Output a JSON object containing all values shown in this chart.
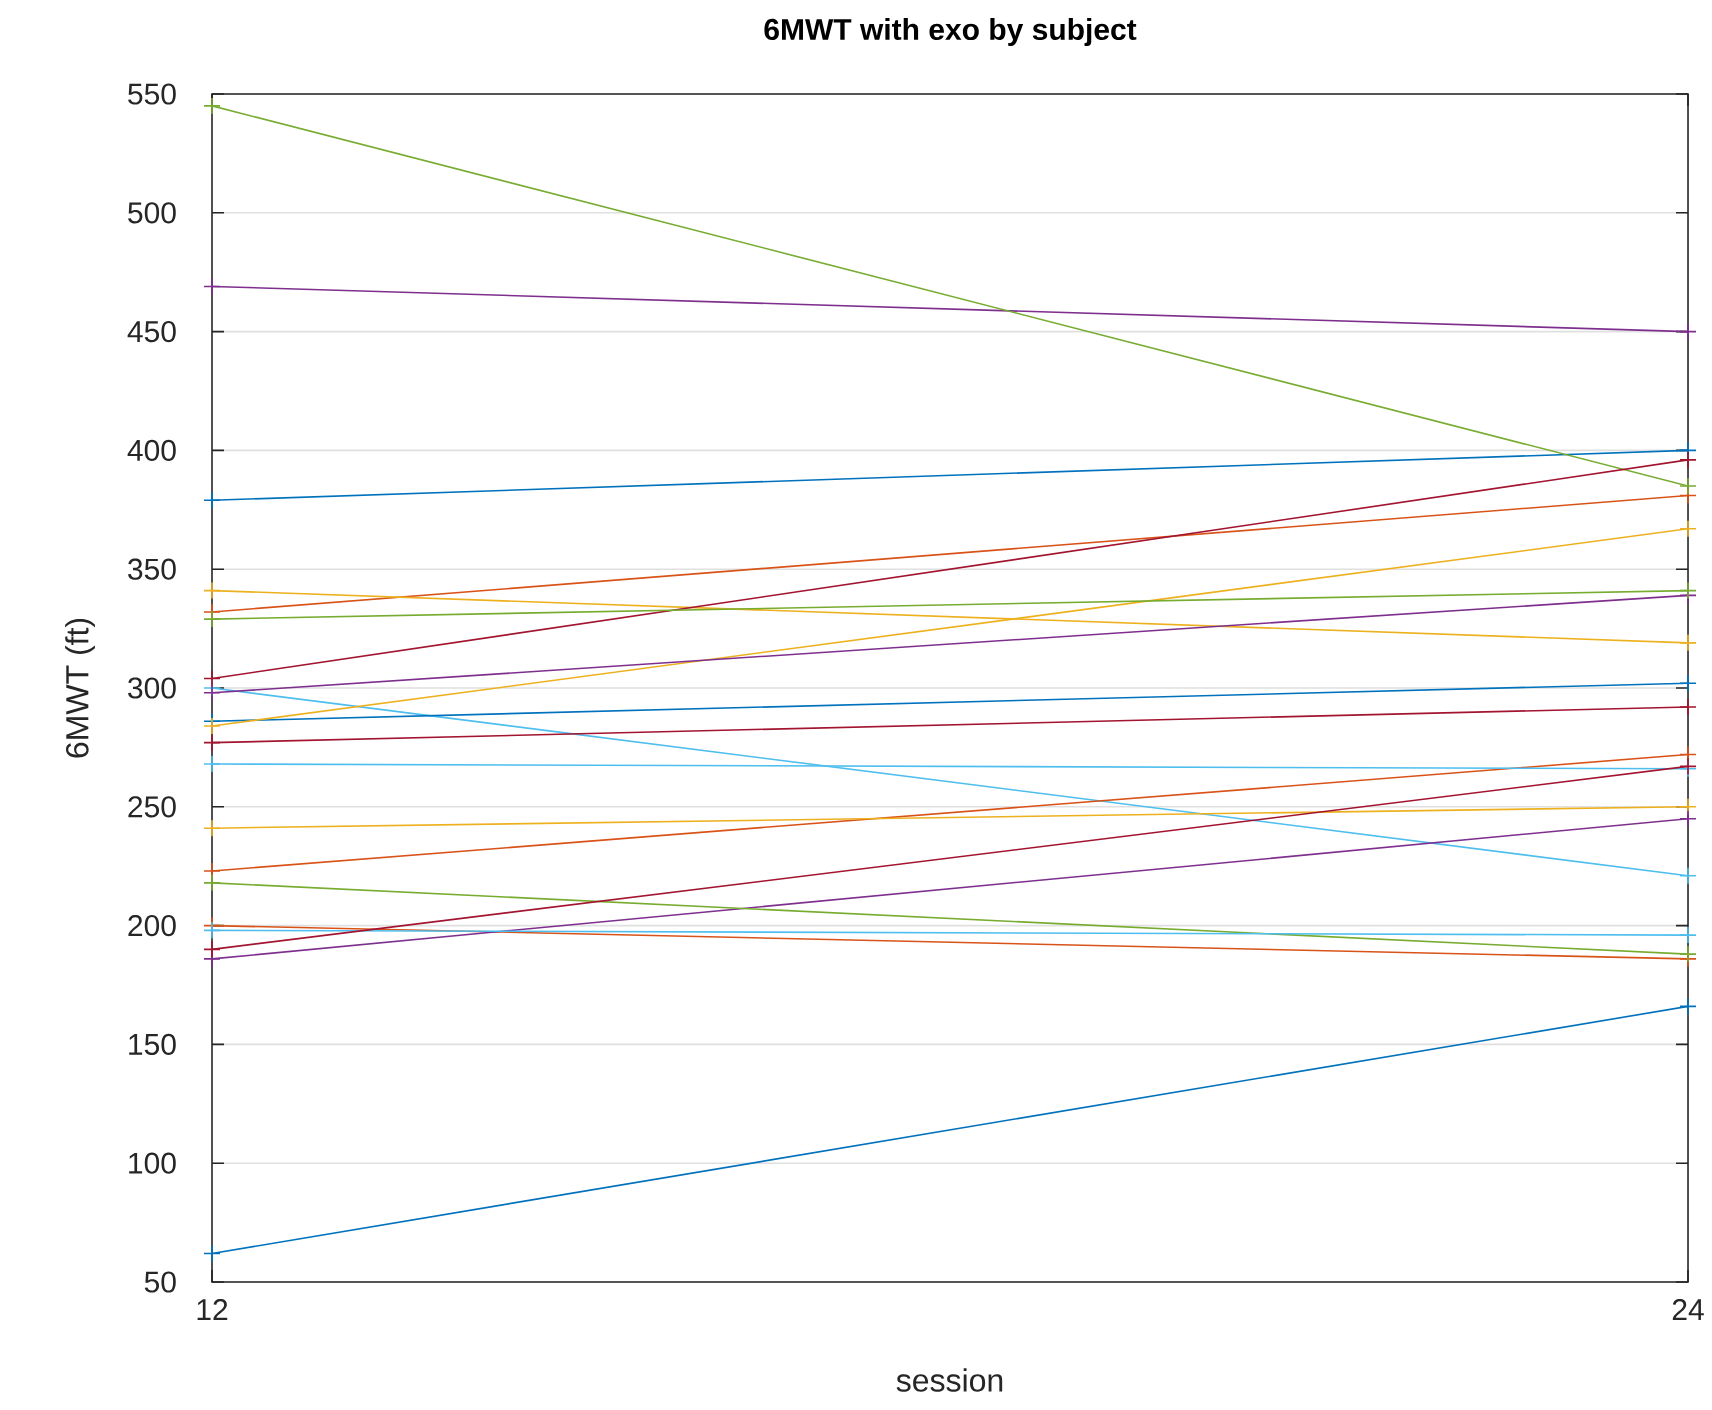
{
  "chart_data": {
    "type": "line",
    "title": "6MWT with exo by subject",
    "xlabel": "session",
    "ylabel": "6MWT (ft)",
    "x": [
      12,
      24
    ],
    "series": [
      {
        "color": "#0072bd",
        "values": [
          379,
          400
        ]
      },
      {
        "color": "#d95319",
        "values": [
          332,
          381
        ]
      },
      {
        "color": "#edb120",
        "values": [
          341,
          319
        ]
      },
      {
        "color": "#7e2f8e",
        "values": [
          469,
          450
        ]
      },
      {
        "color": "#77ac30",
        "values": [
          545,
          385
        ]
      },
      {
        "color": "#4dbeee",
        "values": [
          300,
          221
        ]
      },
      {
        "color": "#a2142f",
        "values": [
          304,
          396
        ]
      },
      {
        "color": "#0072bd",
        "values": [
          286,
          302
        ]
      },
      {
        "color": "#d95319",
        "values": [
          223,
          272
        ]
      },
      {
        "color": "#edb120",
        "values": [
          284,
          367
        ]
      },
      {
        "color": "#7e2f8e",
        "values": [
          298,
          339
        ]
      },
      {
        "color": "#77ac30",
        "values": [
          329,
          341
        ]
      },
      {
        "color": "#4dbeee",
        "values": [
          268,
          266
        ]
      },
      {
        "color": "#a2142f",
        "values": [
          277,
          292
        ]
      },
      {
        "color": "#0072bd",
        "values": [
          62,
          166
        ]
      },
      {
        "color": "#d95319",
        "values": [
          200,
          186
        ]
      },
      {
        "color": "#edb120",
        "values": [
          241,
          250
        ]
      },
      {
        "color": "#7e2f8e",
        "values": [
          186,
          245
        ]
      },
      {
        "color": "#77ac30",
        "values": [
          218,
          188
        ]
      },
      {
        "color": "#4dbeee",
        "values": [
          198,
          196
        ]
      },
      {
        "color": "#a2142f",
        "values": [
          190,
          267
        ]
      }
    ],
    "xlim": [
      12,
      24
    ],
    "ylim": [
      50,
      550
    ],
    "xticks": [
      12,
      24
    ],
    "yticks": [
      50,
      100,
      150,
      200,
      250,
      300,
      350,
      400,
      450,
      500,
      550
    ],
    "grid": "y",
    "marker": "cross",
    "line_style": "solid"
  }
}
